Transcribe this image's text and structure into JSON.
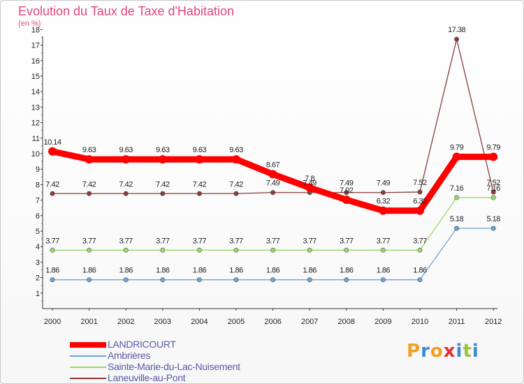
{
  "colors": {
    "title": "#e0457b",
    "axis": "#333333",
    "grid_tick": "#e0457b",
    "label": "#222222",
    "legend_text": "#5a5aa8"
  },
  "logo": {
    "text": "Proxiti",
    "letters": [
      "P",
      "r",
      "o",
      "x",
      "i",
      "t",
      "i"
    ],
    "letter_colors": [
      "#f0a020",
      "#3a8ad6",
      "#f0a020",
      "#e03030",
      "#3a8ad6",
      "#9ac23a",
      "#3a8ad6"
    ]
  },
  "chart_data": {
    "type": "line",
    "title": "Evolution du Taux de Taxe d'Habitation",
    "subtitle": "(en %)",
    "xlabel": "",
    "ylabel": "",
    "categories": [
      "2000",
      "2001",
      "2002",
      "2003",
      "2004",
      "2005",
      "2006",
      "2007",
      "2008",
      "2009",
      "2010",
      "2011",
      "2012"
    ],
    "ylim": [
      0,
      18
    ],
    "yticks": [
      "1",
      "2",
      "3",
      "4",
      "5",
      "6",
      "7",
      "8",
      "9",
      "10",
      "11",
      "12",
      "13",
      "14",
      "15",
      "16",
      "17",
      "18"
    ],
    "grid": false,
    "legend_position": "bottom-left",
    "series": [
      {
        "name": "LANDRICOURT",
        "color": "#ff0000",
        "style": "thick",
        "values": [
          10.14,
          9.63,
          9.63,
          9.63,
          9.63,
          9.63,
          8.67,
          7.8,
          7.02,
          6.32,
          6.32,
          9.79,
          9.79
        ],
        "labels": [
          "10.14",
          "9.63",
          "9.63",
          "9.63",
          "9.63",
          "9.63",
          "8.67",
          "7.8",
          "7.02",
          "6.32",
          "6.32",
          "9.79",
          "9.79"
        ]
      },
      {
        "name": "Ambrières",
        "color": "#6aa6d8",
        "style": "thin",
        "values": [
          1.86,
          1.86,
          1.86,
          1.86,
          1.86,
          1.86,
          1.86,
          1.86,
          1.86,
          1.86,
          1.86,
          5.18,
          5.18
        ],
        "labels": [
          "1.86",
          "1.86",
          "1.86",
          "1.86",
          "1.86",
          "1.86",
          "1.86",
          "1.86",
          "1.86",
          "1.86",
          "1.86",
          "5.18",
          "5.18"
        ]
      },
      {
        "name": "Sainte-Marie-du-Lac-Nuisement",
        "color": "#9ad86a",
        "style": "thin",
        "values": [
          3.77,
          3.77,
          3.77,
          3.77,
          3.77,
          3.77,
          3.77,
          3.77,
          3.77,
          3.77,
          3.77,
          7.16,
          7.16
        ],
        "labels": [
          "3.77",
          "3.77",
          "3.77",
          "3.77",
          "3.77",
          "3.77",
          "3.77",
          "3.77",
          "3.77",
          "3.77",
          "3.77",
          "7.16",
          "7.16"
        ]
      },
      {
        "name": "Laneuville-au-Pont",
        "color": "#8a3a3a",
        "style": "thin",
        "values": [
          7.42,
          7.42,
          7.42,
          7.42,
          7.42,
          7.42,
          7.49,
          7.49,
          7.49,
          7.49,
          7.52,
          17.38,
          7.52
        ],
        "labels": [
          "7.42",
          "7.42",
          "7.42",
          "7.42",
          "7.42",
          "7.42",
          "7.49",
          "7.49",
          "7.49",
          "7.49",
          "7.52",
          "17.38",
          "7.52"
        ]
      }
    ]
  }
}
